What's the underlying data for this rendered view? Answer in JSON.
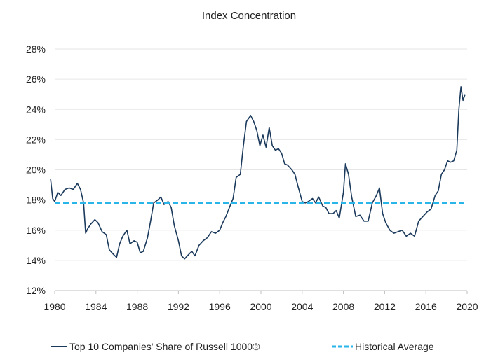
{
  "chart_data": {
    "type": "line",
    "title": "Index Concentration",
    "xlabel": "",
    "ylabel": "",
    "xlim": [
      1980,
      2020
    ],
    "ylim": [
      12,
      28
    ],
    "x_ticks": [
      1980,
      1984,
      1988,
      1992,
      1996,
      2000,
      2004,
      2008,
      2012,
      2016,
      2020
    ],
    "y_ticks": [
      "12%",
      "14%",
      "16%",
      "18%",
      "20%",
      "22%",
      "24%",
      "26%",
      "28%"
    ],
    "grid": "horizontal",
    "legend_position": "bottom",
    "series": [
      {
        "name": "Top 10 Companies' Share of Russell 1000®",
        "color": "#1b3a5c",
        "style": "solid",
        "x": [
          1979.6,
          1979.8,
          1980.0,
          1980.3,
          1980.6,
          1981.0,
          1981.4,
          1981.8,
          1982.2,
          1982.5,
          1982.8,
          1983.0,
          1983.2,
          1983.5,
          1983.9,
          1984.2,
          1984.6,
          1985.0,
          1985.3,
          1985.7,
          1986.0,
          1986.3,
          1986.6,
          1987.0,
          1987.3,
          1987.7,
          1988.0,
          1988.3,
          1988.6,
          1989.0,
          1989.3,
          1989.6,
          1990.0,
          1990.3,
          1990.6,
          1991.0,
          1991.3,
          1991.6,
          1992.0,
          1992.3,
          1992.6,
          1993.0,
          1993.3,
          1993.6,
          1994.0,
          1994.4,
          1994.8,
          1995.2,
          1995.6,
          1996.0,
          1996.3,
          1996.6,
          1997.0,
          1997.3,
          1997.6,
          1998.0,
          1998.3,
          1998.6,
          1999.0,
          1999.3,
          1999.6,
          1999.9,
          2000.2,
          2000.5,
          2000.8,
          2001.1,
          2001.4,
          2001.7,
          2002.0,
          2002.3,
          2002.6,
          2003.0,
          2003.3,
          2003.6,
          2004.0,
          2004.3,
          2004.6,
          2005.0,
          2005.3,
          2005.6,
          2006.0,
          2006.3,
          2006.6,
          2007.0,
          2007.3,
          2007.6,
          2008.0,
          2008.2,
          2008.5,
          2008.8,
          2009.2,
          2009.6,
          2010.0,
          2010.4,
          2010.8,
          2011.2,
          2011.5,
          2011.8,
          2012.1,
          2012.5,
          2012.9,
          2013.3,
          2013.7,
          2014.1,
          2014.5,
          2014.9,
          2015.3,
          2015.7,
          2016.1,
          2016.5,
          2016.9,
          2017.2,
          2017.5,
          2017.8,
          2018.1,
          2018.4,
          2018.7,
          2019.0,
          2019.2,
          2019.4,
          2019.6,
          2019.8
        ],
        "y": [
          19.4,
          18.1,
          17.9,
          18.5,
          18.3,
          18.7,
          18.8,
          18.7,
          19.1,
          18.7,
          17.8,
          15.8,
          16.1,
          16.4,
          16.7,
          16.5,
          15.9,
          15.7,
          14.7,
          14.4,
          14.2,
          15.1,
          15.6,
          16.0,
          15.1,
          15.3,
          15.2,
          14.5,
          14.6,
          15.5,
          16.6,
          17.8,
          18.0,
          18.2,
          17.7,
          17.9,
          17.5,
          16.3,
          15.3,
          14.3,
          14.1,
          14.4,
          14.6,
          14.3,
          15.0,
          15.3,
          15.5,
          15.9,
          15.8,
          16.0,
          16.5,
          16.9,
          17.6,
          18.1,
          19.5,
          19.7,
          21.6,
          23.2,
          23.6,
          23.2,
          22.6,
          21.6,
          22.3,
          21.5,
          22.8,
          21.6,
          21.3,
          21.4,
          21.1,
          20.4,
          20.3,
          20.0,
          19.7,
          18.9,
          17.9,
          17.8,
          17.9,
          18.1,
          17.8,
          18.2,
          17.6,
          17.5,
          17.1,
          17.1,
          17.3,
          16.8,
          18.5,
          20.4,
          19.7,
          18.2,
          16.9,
          17.0,
          16.6,
          16.6,
          17.8,
          18.3,
          18.8,
          17.1,
          16.5,
          16.0,
          15.8,
          15.9,
          16.0,
          15.6,
          15.8,
          15.6,
          16.6,
          16.9,
          17.2,
          17.4,
          18.3,
          18.6,
          19.7,
          20.0,
          20.6,
          20.5,
          20.6,
          21.3,
          24.0,
          25.5,
          24.6,
          25.0
        ]
      },
      {
        "name": "Historical Average",
        "color": "#29b5e8",
        "style": "dashed",
        "x": [
          1980,
          2019.8
        ],
        "y": [
          17.8,
          17.8
        ]
      }
    ]
  }
}
